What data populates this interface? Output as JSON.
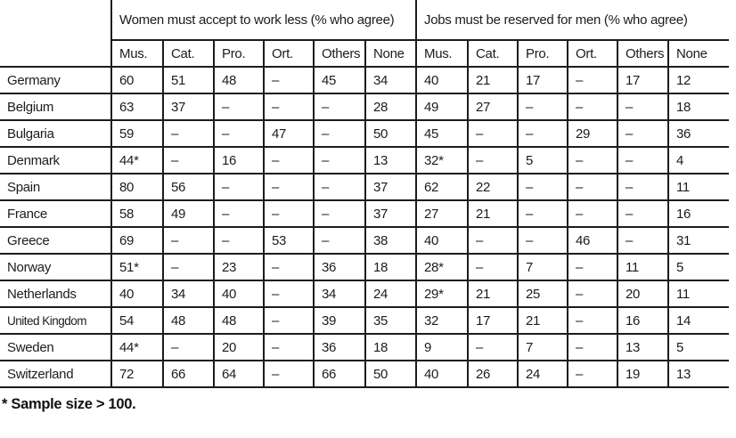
{
  "chart_data": {
    "type": "table",
    "col_groups": [
      {
        "label": "Women must accept to work less (% who agree)"
      },
      {
        "label": "Jobs must be reserved for men (% who agree)"
      }
    ],
    "sub_headers": [
      "Mus.",
      "Cat.",
      "Pro.",
      "Ort.",
      "Others",
      "None"
    ],
    "rows": [
      {
        "country": "Germany",
        "women": [
          "60",
          "51",
          "48",
          "–",
          "45",
          "34"
        ],
        "jobs": [
          "40",
          "21",
          "17",
          "–",
          "17",
          "12"
        ]
      },
      {
        "country": "Belgium",
        "women": [
          "63",
          "37",
          "–",
          "–",
          "–",
          "28"
        ],
        "jobs": [
          "49",
          "27",
          "–",
          "–",
          "–",
          "18"
        ]
      },
      {
        "country": "Bulgaria",
        "women": [
          "59",
          "–",
          "–",
          "47",
          "–",
          "50"
        ],
        "jobs": [
          "45",
          "–",
          "–",
          "29",
          "–",
          "36"
        ]
      },
      {
        "country": "Denmark",
        "women": [
          "44*",
          "–",
          "16",
          "–",
          "–",
          "13"
        ],
        "jobs": [
          "32*",
          "–",
          "5",
          "–",
          "–",
          "4"
        ]
      },
      {
        "country": "Spain",
        "women": [
          "80",
          "56",
          "–",
          "–",
          "–",
          "37"
        ],
        "jobs": [
          "62",
          "22",
          "–",
          "–",
          "–",
          "11"
        ]
      },
      {
        "country": "France",
        "women": [
          "58",
          "49",
          "–",
          "–",
          "–",
          "37"
        ],
        "jobs": [
          "27",
          "21",
          "–",
          "–",
          "–",
          "16"
        ]
      },
      {
        "country": "Greece",
        "women": [
          "69",
          "–",
          "–",
          "53",
          "–",
          "38"
        ],
        "jobs": [
          "40",
          "–",
          "–",
          "46",
          "–",
          "31"
        ]
      },
      {
        "country": "Norway",
        "women": [
          "51*",
          "–",
          "23",
          "–",
          "36",
          "18"
        ],
        "jobs": [
          "28*",
          "–",
          "7",
          "–",
          "11",
          "5"
        ]
      },
      {
        "country": "Netherlands",
        "women": [
          "40",
          "34",
          "40",
          "–",
          "34",
          "24"
        ],
        "jobs": [
          "29*",
          "21",
          "25",
          "–",
          "20",
          "11"
        ]
      },
      {
        "country": "United Kingdom",
        "women": [
          "54",
          "48",
          "48",
          "–",
          "39",
          "35"
        ],
        "jobs": [
          "32",
          "17",
          "21",
          "–",
          "16",
          "14"
        ]
      },
      {
        "country": "Sweden",
        "women": [
          "44*",
          "–",
          "20",
          "–",
          "36",
          "18"
        ],
        "jobs": [
          "9",
          "–",
          "7",
          "–",
          "13",
          "5"
        ]
      },
      {
        "country": "Switzerland",
        "women": [
          "72",
          "66",
          "64",
          "–",
          "66",
          "50"
        ],
        "jobs": [
          "40",
          "26",
          "24",
          "–",
          "19",
          "13"
        ]
      }
    ],
    "footnote": "* Sample size > 100."
  }
}
